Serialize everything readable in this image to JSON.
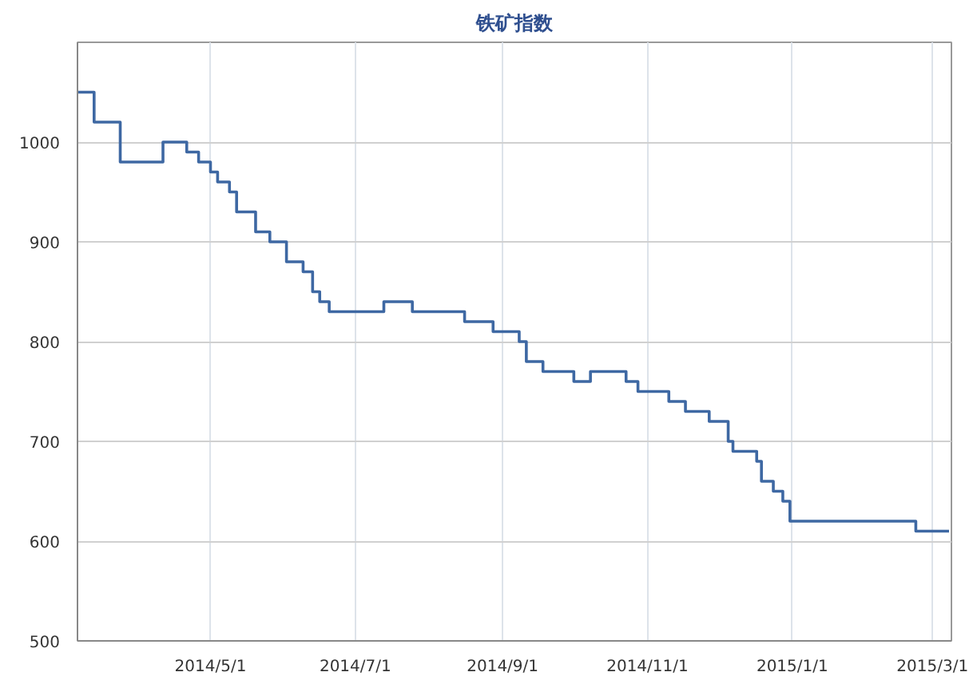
{
  "chart_data": {
    "type": "step",
    "title": "铁矿指数",
    "x": [
      "2014-03-06",
      "2014-03-13",
      "2014-03-24",
      "2014-04-11",
      "2014-04-21",
      "2014-04-26",
      "2014-05-01",
      "2014-05-04",
      "2014-05-09",
      "2014-05-12",
      "2014-05-20",
      "2014-05-26",
      "2014-06-02",
      "2014-06-09",
      "2014-06-13",
      "2014-06-16",
      "2014-06-20",
      "2014-07-13",
      "2014-07-25",
      "2014-08-16",
      "2014-08-28",
      "2014-09-08",
      "2014-09-11",
      "2014-09-18",
      "2014-10-01",
      "2014-10-08",
      "2014-10-23",
      "2014-10-28",
      "2014-11-10",
      "2014-11-17",
      "2014-11-27",
      "2014-12-05",
      "2014-12-07",
      "2014-12-17",
      "2014-12-19",
      "2014-12-24",
      "2014-12-28",
      "2014-12-31",
      "2015-02-22",
      "2015-03-08"
    ],
    "series": [
      {
        "color": "#3e68a3",
        "values": [
          1050,
          1020,
          980,
          1000,
          990,
          980,
          970,
          960,
          950,
          930,
          910,
          900,
          880,
          870,
          850,
          840,
          830,
          840,
          830,
          820,
          810,
          800,
          780,
          770,
          760,
          770,
          760,
          750,
          740,
          730,
          720,
          700,
          690,
          680,
          660,
          650,
          640,
          620,
          610,
          610
        ]
      }
    ],
    "xlim": [
      "2014-03-06",
      "2015-03-09"
    ],
    "xticks": [
      {
        "value": "2014-05-01",
        "label": "2014/5/1"
      },
      {
        "value": "2014-07-01",
        "label": "2014/7/1"
      },
      {
        "value": "2014-09-01",
        "label": "2014/9/1"
      },
      {
        "value": "2014-11-01",
        "label": "2014/11/1"
      },
      {
        "value": "2015-01-01",
        "label": "2015/1/1"
      },
      {
        "value": "2015-03-01",
        "label": "2015/3/1"
      }
    ],
    "ylim": [
      500,
      1100
    ],
    "yticks": [
      500,
      600,
      700,
      800,
      900,
      1000
    ],
    "grid": true
  }
}
